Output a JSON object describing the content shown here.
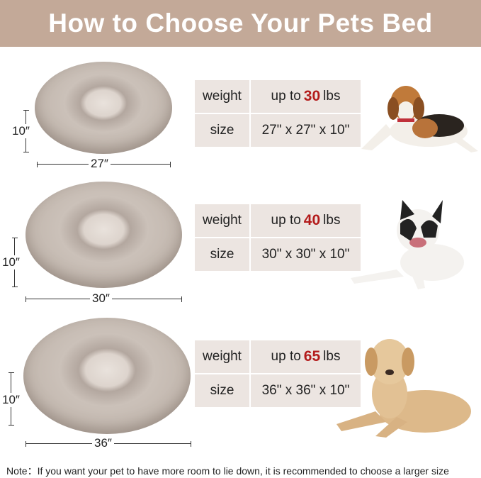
{
  "title": "How to Choose Your Pets Bed",
  "sizes": [
    {
      "weight_label": "weight",
      "weight_prefix": "up to",
      "weight_value": "30",
      "weight_unit": "lbs",
      "size_label": "size",
      "size_value": "27\" x 27\" x 10\"",
      "height_dim": "10″",
      "width_dim": "27″"
    },
    {
      "weight_label": "weight",
      "weight_prefix": "up to",
      "weight_value": "40",
      "weight_unit": "lbs",
      "size_label": "size",
      "size_value": "30\" x 30\" x 10\"",
      "height_dim": "10″",
      "width_dim": "30″"
    },
    {
      "weight_label": "weight",
      "weight_prefix": "up to",
      "weight_value": "65",
      "weight_unit": "lbs",
      "size_label": "size",
      "size_value": "36\" x 36\" x 10\"",
      "height_dim": "10″",
      "width_dim": "36″"
    }
  ],
  "note": "Note：If you want your pet to have more room to lie down, it is recommended to choose a larger size",
  "colors": {
    "header": "#c3a998",
    "highlight": "#b31b1b",
    "cell": "#ece5e1"
  }
}
